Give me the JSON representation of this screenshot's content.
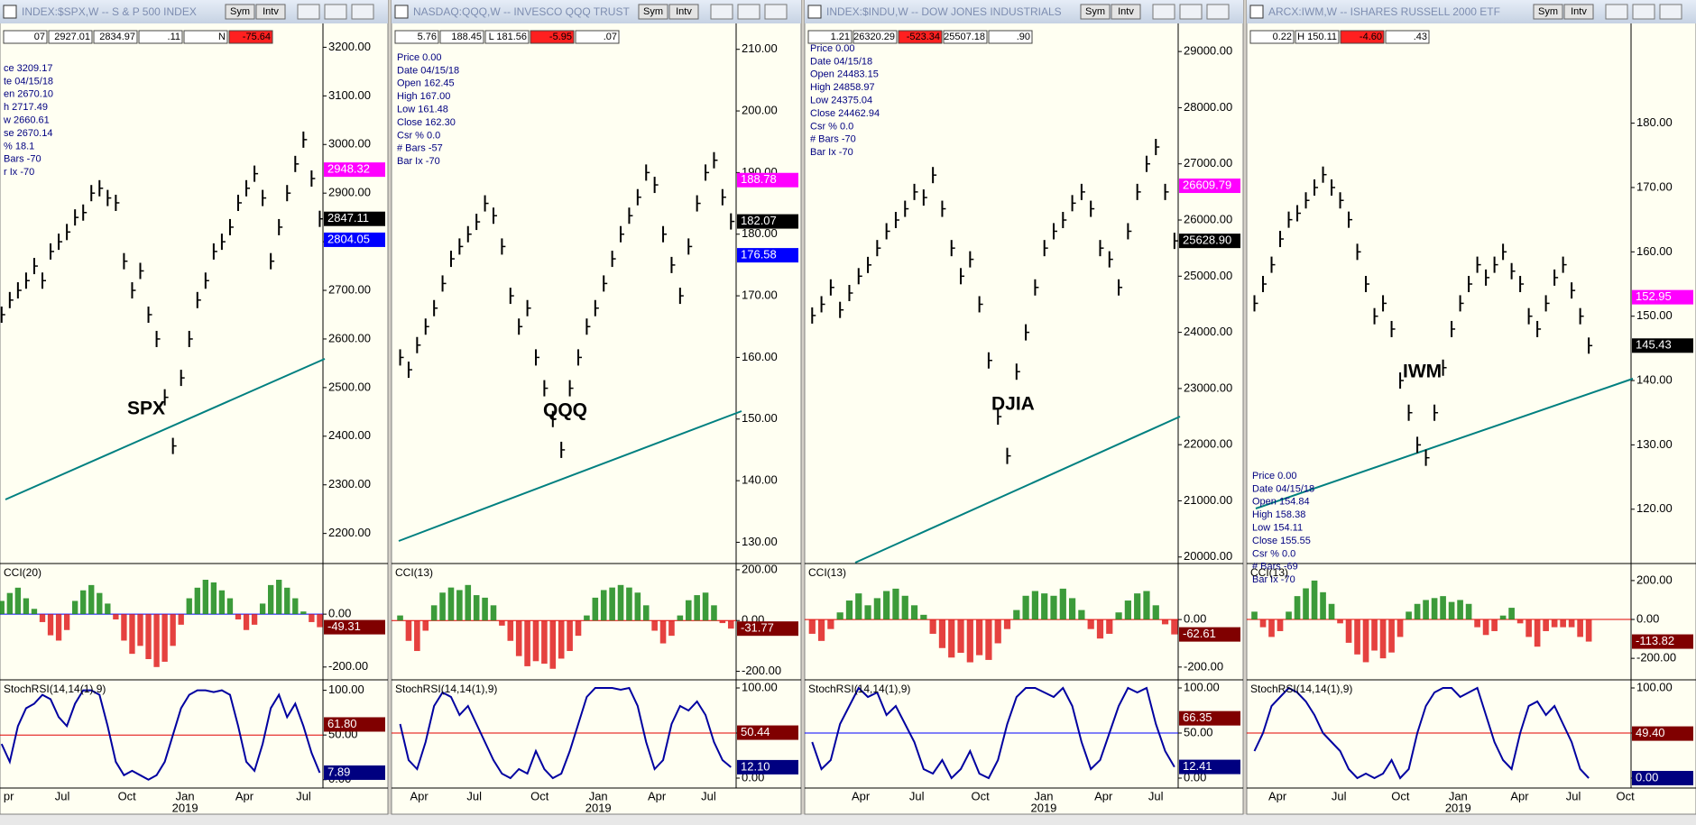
{
  "windows": [
    {
      "title": "INDEX:$SPX,W -- S & P 500 INDEX",
      "buttons": [
        "Sym",
        "Intv"
      ],
      "strip": [
        "07",
        "2927.01",
        "2834.97",
        ".11",
        "N",
        "-75.64"
      ],
      "info": [
        "ce 3209.17",
        "te 04/15/18",
        "en 2670.10",
        "h 2717.49",
        "w 2660.61",
        "se 2670.14",
        "% 18.1",
        "Bars -70",
        "r Ix -70"
      ],
      "label": "SPX",
      "price": {
        "ylim": [
          2140,
          3249
        ],
        "yticks": [
          {
            "value": 3200,
            "label": "3200.00"
          },
          {
            "value": 3100,
            "label": "3100.00"
          },
          {
            "value": 3000,
            "label": "3000.00"
          },
          {
            "value": 2900,
            "label": "2900.00"
          },
          {
            "value": 2800,
            "label": "2800.00"
          },
          {
            "value": 2700,
            "label": "2700.00"
          },
          {
            "value": 2600,
            "label": "2600.00"
          },
          {
            "value": 2500,
            "label": "2500.00"
          },
          {
            "value": 2400,
            "label": "2400.00"
          },
          {
            "value": 2300,
            "label": "2300.00"
          },
          {
            "value": 2200,
            "label": "2200.00"
          }
        ],
        "boxes": [
          {
            "value": 2948.32,
            "label": "2948.32",
            "color": "#ff00ff"
          },
          {
            "value": 2847.11,
            "label": "2847.11",
            "color": "#000000"
          },
          {
            "value": 2804.05,
            "label": "2804.05",
            "color": "#0000ff"
          }
        ],
        "closes": [
          2650,
          2680,
          2700,
          2720,
          2750,
          2720,
          2780,
          2800,
          2820,
          2850,
          2860,
          2900,
          2910,
          2890,
          2880,
          2760,
          2700,
          2740,
          2650,
          2600,
          2480,
          2380,
          2520,
          2600,
          2680,
          2720,
          2780,
          2800,
          2830,
          2880,
          2910,
          2940,
          2890,
          2760,
          2830,
          2900,
          2960,
          3010,
          2930,
          2847.11
        ]
      },
      "cci": {
        "title": "CCI(20)",
        "ylim": [
          -245,
          188
        ],
        "yticks": [
          {
            "value": 0,
            "label": "0.00"
          },
          {
            "value": -200,
            "label": "-200.00"
          }
        ],
        "box": {
          "value": -49.31,
          "label": "-49.31",
          "color": "#800000"
        },
        "values": [
          50,
          80,
          100,
          60,
          20,
          -30,
          -80,
          -100,
          -60,
          50,
          90,
          110,
          80,
          40,
          -20,
          -100,
          -150,
          -120,
          -170,
          -200,
          -180,
          -120,
          -40,
          60,
          100,
          130,
          120,
          90,
          60,
          -20,
          -60,
          -40,
          40,
          110,
          130,
          100,
          60,
          10,
          -30,
          -49.31
        ]
      },
      "stoch": {
        "title": "StochRSI(14,14(1),9)",
        "ylim": [
          -8.3,
          110.7
        ],
        "yticks": [
          {
            "value": 100,
            "label": "100.00"
          },
          {
            "value": 50,
            "label": "50.00"
          },
          {
            "value": 0,
            "label": "0.00"
          }
        ],
        "boxes": [
          {
            "value": 61.8,
            "label": "61.80",
            "color": "#800000"
          },
          {
            "value": 7.89,
            "label": "7.89",
            "color": "#000080"
          }
        ],
        "values": [
          40,
          20,
          60,
          80,
          85,
          95,
          90,
          70,
          60,
          85,
          100,
          100,
          95,
          60,
          20,
          5,
          10,
          5,
          0,
          5,
          20,
          50,
          80,
          95,
          100,
          100,
          98,
          100,
          95,
          60,
          20,
          10,
          40,
          80,
          95,
          70,
          85,
          60,
          30,
          7.89
        ]
      },
      "xlabels": [
        "pr",
        "Jul",
        "Oct",
        "Jan",
        "Apr",
        "Jul"
      ],
      "year": "2019"
    },
    {
      "title": "NASDAQ:QQQ,W -- INVESCO QQQ TRUST",
      "buttons": [
        "Sym",
        "Intv"
      ],
      "strip": [
        "5.76",
        "188.45",
        "L 181.56",
        "-5.95",
        ".07"
      ],
      "info": [
        "Price 0.00",
        "Date 04/15/18",
        "Open 162.45",
        "High 167.00",
        "Low 161.48",
        "Close 162.30",
        "Csr % 0.0",
        "# Bars -57",
        "Bar Ix -70"
      ],
      "label": "QQQ",
      "price": {
        "ylim": [
          126.7,
          214.2
        ],
        "yticks": [
          {
            "value": 210,
            "label": "210.00"
          },
          {
            "value": 200,
            "label": "200.00"
          },
          {
            "value": 190,
            "label": "190.00"
          },
          {
            "value": 180,
            "label": "180.00"
          },
          {
            "value": 170,
            "label": "170.00"
          },
          {
            "value": 160,
            "label": "160.00"
          },
          {
            "value": 150,
            "label": "150.00"
          },
          {
            "value": 140,
            "label": "140.00"
          },
          {
            "value": 130,
            "label": "130.00"
          }
        ],
        "boxes": [
          {
            "value": 188.78,
            "label": "188.78",
            "color": "#ff00ff"
          },
          {
            "value": 182.07,
            "label": "182.07",
            "color": "#000000"
          },
          {
            "value": 176.58,
            "label": "176.58",
            "color": "#0000ff"
          }
        ],
        "closes": [
          160,
          158,
          162,
          165,
          168,
          172,
          176,
          178,
          180,
          182,
          185,
          183,
          178,
          170,
          165,
          168,
          160,
          155,
          150,
          145,
          155,
          160,
          165,
          168,
          172,
          176,
          180,
          183,
          186,
          190,
          188,
          180,
          175,
          170,
          178,
          185,
          190,
          192,
          186,
          182.07
        ]
      },
      "cci": {
        "title": "CCI(13)",
        "ylim": [
          -230,
          221
        ],
        "yticks": [
          {
            "value": 200,
            "label": "200.00"
          },
          {
            "value": 0,
            "label": "0.00"
          },
          {
            "value": -200,
            "label": "-200.00"
          }
        ],
        "box": {
          "value": -31.77,
          "label": "-31.77",
          "color": "#800000"
        },
        "values": [
          20,
          -80,
          -120,
          -40,
          60,
          110,
          130,
          120,
          140,
          100,
          90,
          60,
          -20,
          -80,
          -140,
          -180,
          -160,
          -170,
          -190,
          -150,
          -120,
          -60,
          20,
          90,
          120,
          130,
          140,
          130,
          110,
          60,
          -40,
          -90,
          -60,
          20,
          80,
          100,
          110,
          60,
          -10,
          -31.77
        ]
      },
      "stoch": {
        "title": "StochRSI(14,14(1),9)",
        "ylim": [
          -10,
          108
        ],
        "yticks": [
          {
            "value": 100,
            "label": "100.00"
          },
          {
            "value": 50,
            "label": "50.00"
          },
          {
            "value": 0,
            "label": "0.00"
          }
        ],
        "boxes": [
          {
            "value": 50.44,
            "label": "50.44",
            "color": "#800000"
          },
          {
            "value": 12.1,
            "label": "12.10",
            "color": "#000080"
          }
        ],
        "values": [
          60,
          20,
          10,
          40,
          80,
          95,
          90,
          70,
          80,
          60,
          40,
          20,
          5,
          0,
          10,
          5,
          30,
          10,
          0,
          5,
          30,
          60,
          90,
          100,
          100,
          100,
          98,
          100,
          80,
          40,
          10,
          20,
          60,
          80,
          75,
          85,
          70,
          40,
          20,
          12.1
        ]
      },
      "xlabels": [
        "Apr",
        "Jul",
        "Oct",
        "Jan",
        "Apr",
        "Jul"
      ],
      "year": "2019"
    },
    {
      "title": "INDEX:$INDU,W -- DOW JONES INDUSTRIALS",
      "buttons": [
        "Sym",
        "Intv"
      ],
      "strip": [
        "1.21",
        "26320.29",
        "-523.34",
        "25507.18",
        ".90"
      ],
      "info": [
        "Price 0.00",
        "Date 04/15/18",
        "Open 24483.15",
        "High 24858.97",
        "Low 24375.04",
        "Close 24462.94",
        "Csr % 0.0",
        "# Bars -70",
        "Bar Ix -70"
      ],
      "label": "DJIA",
      "price": {
        "ylim": [
          19900,
          29500
        ],
        "yticks": [
          {
            "value": 29000,
            "label": "29000.00"
          },
          {
            "value": 28000,
            "label": "28000.00"
          },
          {
            "value": 27000,
            "label": "27000.00"
          },
          {
            "value": 26000,
            "label": "26000.00"
          },
          {
            "value": 25000,
            "label": "25000.00"
          },
          {
            "value": 24000,
            "label": "24000.00"
          },
          {
            "value": 23000,
            "label": "23000.00"
          },
          {
            "value": 22000,
            "label": "22000.00"
          },
          {
            "value": 21000,
            "label": "21000.00"
          },
          {
            "value": 20000,
            "label": "20000.00"
          }
        ],
        "boxes": [
          {
            "value": 26609.79,
            "label": "26609.79",
            "color": "#ff00ff"
          },
          {
            "value": 25628.9,
            "label": "25628.90",
            "color": "#000000"
          }
        ],
        "closes": [
          24300,
          24500,
          24800,
          24400,
          24700,
          25000,
          25200,
          25500,
          25800,
          26000,
          26200,
          26500,
          26400,
          26800,
          26200,
          25500,
          25000,
          25300,
          24500,
          23500,
          22500,
          21800,
          23300,
          24000,
          24800,
          25500,
          25800,
          26000,
          26300,
          26500,
          26200,
          25500,
          25300,
          24800,
          25800,
          26500,
          27000,
          27300,
          26500,
          25628.9
        ]
      },
      "cci": {
        "title": "CCI(13)",
        "ylim": [
          -250,
          232
        ],
        "yticks": [
          {
            "value": 0,
            "label": "0.00"
          },
          {
            "value": -200,
            "label": "-200.00"
          }
        ],
        "box": {
          "value": -62.61,
          "label": "-62.61",
          "color": "#800000"
        },
        "values": [
          -60,
          -90,
          -40,
          30,
          80,
          110,
          60,
          90,
          120,
          130,
          100,
          60,
          20,
          -60,
          -120,
          -160,
          -140,
          -180,
          -150,
          -170,
          -100,
          -40,
          40,
          100,
          120,
          110,
          100,
          130,
          90,
          40,
          -40,
          -80,
          -60,
          30,
          80,
          110,
          120,
          60,
          -20,
          -62.61
        ]
      },
      "stoch": {
        "title": "StochRSI(14,14(1),9)",
        "ylim": [
          -10,
          108
        ],
        "yticks": [
          {
            "value": 100,
            "label": "100.00"
          },
          {
            "value": 50,
            "label": "50.00"
          },
          {
            "value": 0,
            "label": "0.00"
          }
        ],
        "boxes": [
          {
            "value": 66.35,
            "label": "66.35",
            "color": "#800000"
          },
          {
            "value": 12.41,
            "label": "12.41",
            "color": "#000080"
          }
        ],
        "values": [
          40,
          10,
          20,
          60,
          80,
          100,
          90,
          95,
          70,
          80,
          60,
          40,
          10,
          5,
          20,
          0,
          10,
          30,
          5,
          0,
          20,
          60,
          90,
          100,
          100,
          95,
          90,
          100,
          80,
          40,
          10,
          20,
          50,
          80,
          100,
          95,
          100,
          60,
          30,
          12.41
        ]
      },
      "xlabels": [
        "Apr",
        "Jul",
        "Oct",
        "Jan",
        "Apr",
        "Jul"
      ],
      "year": "2019"
    },
    {
      "title": "ARCX:IWM,W -- ISHARES RUSSELL 2000 ETF",
      "buttons": [
        "Sym",
        "Intv"
      ],
      "strip": [
        "0.22",
        "H 150.11",
        "-4.60",
        ".43"
      ],
      "info": [
        "Price 0.00",
        "Date 04/15/18",
        "Open 154.84",
        "High 158.38",
        "Low 154.11",
        "Close 155.55",
        "Csr % 0.0",
        "# Bars -69",
        "Bar Ix -70"
      ],
      "label": "IWM",
      "price": {
        "ylim": [
          111.7,
          195.5
        ],
        "yticks": [
          {
            "value": 180,
            "label": "180.00"
          },
          {
            "value": 170,
            "label": "170.00"
          },
          {
            "value": 160,
            "label": "160.00"
          },
          {
            "value": 150,
            "label": "150.00"
          },
          {
            "value": 140,
            "label": "140.00"
          },
          {
            "value": 130,
            "label": "130.00"
          },
          {
            "value": 120,
            "label": "120.00"
          }
        ],
        "boxes": [
          {
            "value": 152.95,
            "label": "152.95",
            "color": "#ff00ff"
          },
          {
            "value": 145.43,
            "label": "145.43",
            "color": "#000000"
          }
        ],
        "closes": [
          152,
          155,
          158,
          162,
          165,
          166,
          168,
          170,
          172,
          170,
          168,
          165,
          160,
          155,
          150,
          152,
          148,
          140,
          135,
          130,
          128,
          135,
          142,
          148,
          152,
          155,
          158,
          156,
          158,
          160,
          157,
          155,
          150,
          148,
          152,
          156,
          158,
          154,
          150,
          145.43
        ]
      },
      "cci": {
        "title": "CCI(13)",
        "ylim": [
          -306,
          283
        ],
        "yticks": [
          {
            "value": 200,
            "label": "200.00"
          },
          {
            "value": 0,
            "label": "0.00"
          },
          {
            "value": -200,
            "label": "-200.00"
          }
        ],
        "box": {
          "value": -113.82,
          "label": "-113.82",
          "color": "#800000"
        },
        "values": [
          40,
          -40,
          -90,
          -60,
          40,
          120,
          160,
          200,
          140,
          80,
          -20,
          -120,
          -180,
          -220,
          -160,
          -200,
          -170,
          -90,
          40,
          80,
          100,
          110,
          120,
          90,
          100,
          80,
          -40,
          -80,
          -60,
          20,
          60,
          -20,
          -90,
          -140,
          -60,
          -40,
          -40,
          -40,
          -90,
          -113.82
        ]
      },
      "stoch": {
        "title": "StochRSI(14,14(1),9)",
        "ylim": [
          -10,
          108
        ],
        "yticks": [
          {
            "value": 100,
            "label": "100.00"
          },
          {
            "value": 50,
            "label": "50.00"
          },
          {
            "value": 0,
            "label": "0.00"
          }
        ],
        "boxes": [
          {
            "value": 49.4,
            "label": "49.40",
            "color": "#800000"
          },
          {
            "value": 0,
            "label": "0.00",
            "color": "#000080"
          }
        ],
        "values": [
          30,
          50,
          80,
          90,
          100,
          95,
          85,
          70,
          50,
          40,
          30,
          10,
          0,
          5,
          0,
          5,
          20,
          0,
          10,
          50,
          80,
          95,
          100,
          100,
          90,
          95,
          100,
          70,
          40,
          20,
          10,
          50,
          80,
          85,
          70,
          80,
          60,
          40,
          10,
          0
        ]
      },
      "xlabels": [
        "Apr",
        "Jul",
        "Oct",
        "Jan",
        "Apr",
        "Jul",
        "Oct"
      ],
      "year": "2019"
    }
  ]
}
